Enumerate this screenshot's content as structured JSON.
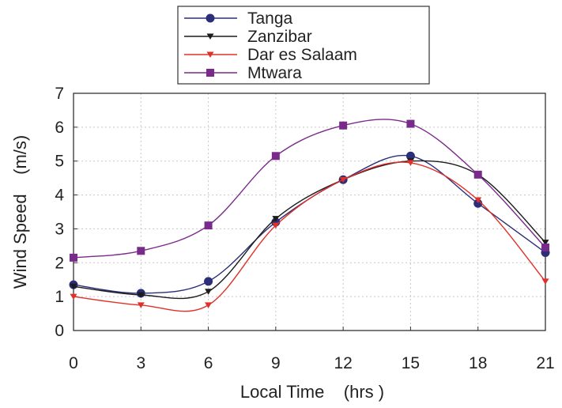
{
  "chart_data": {
    "type": "line",
    "xlabel": "Local Time    (hrs )",
    "ylabel": "Wind Speed    (m/s)",
    "x": [
      0,
      3,
      6,
      9,
      12,
      15,
      18,
      21
    ],
    "xlim": [
      0,
      21
    ],
    "ylim": [
      0,
      7
    ],
    "xticks": [
      "0",
      "3",
      "6",
      "9",
      "12",
      "15",
      "18",
      "21"
    ],
    "yticks": [
      "0",
      "1",
      "2",
      "3",
      "4",
      "5",
      "6",
      "7"
    ],
    "grid": "dotted",
    "legend_position": "top-left",
    "series": [
      {
        "name": "Tanga",
        "color": "#2b2f7a",
        "marker": "circle",
        "values": [
          1.35,
          1.1,
          1.45,
          3.2,
          4.45,
          5.15,
          3.75,
          2.3
        ]
      },
      {
        "name": "Zanzibar",
        "color": "#1c1c1c",
        "marker": "triangle-down",
        "values": [
          1.3,
          1.05,
          1.15,
          3.3,
          4.45,
          5.0,
          4.6,
          2.6
        ]
      },
      {
        "name": "Dar es Salaam",
        "color": "#e0302a",
        "marker": "triangle-down",
        "values": [
          1.0,
          0.75,
          0.75,
          3.1,
          4.45,
          4.95,
          3.85,
          1.45
        ]
      },
      {
        "name": "Mtwara",
        "color": "#7a2a8a",
        "marker": "square",
        "values": [
          2.15,
          2.35,
          3.1,
          5.15,
          6.05,
          6.1,
          4.6,
          2.45
        ]
      }
    ]
  }
}
